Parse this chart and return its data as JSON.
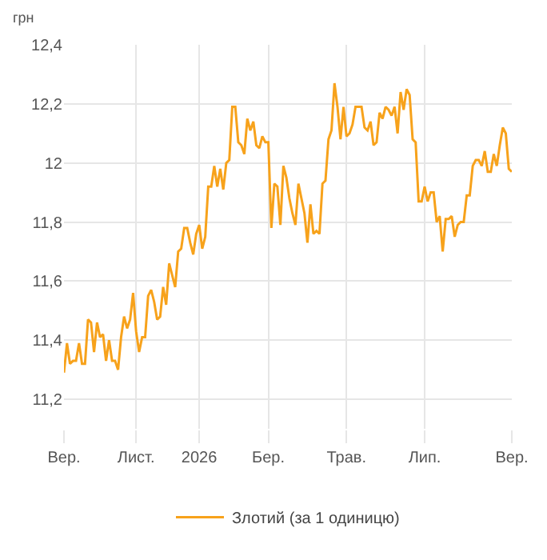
{
  "chart_data": {
    "type": "line",
    "ylabel": "грн",
    "categories": [
      "Вер.",
      null,
      null,
      null,
      null,
      null,
      null,
      null,
      null,
      null,
      null,
      null,
      null,
      null,
      null,
      null,
      null,
      null,
      null,
      null,
      null,
      null,
      null,
      null,
      "Лист.",
      null,
      null,
      null,
      null,
      null,
      null,
      null,
      null,
      null,
      null,
      null,
      null,
      null,
      null,
      null,
      null,
      null,
      null,
      null,
      null,
      "2026",
      null,
      null,
      null,
      null,
      null,
      null,
      null,
      null,
      null,
      null,
      null,
      null,
      null,
      null,
      null,
      null,
      null,
      null,
      null,
      null,
      null,
      null,
      "Бер.",
      null,
      null,
      null,
      null,
      null,
      null,
      null,
      null,
      null,
      null,
      null,
      null,
      null,
      null,
      null,
      null,
      null,
      null,
      null,
      null,
      null,
      null,
      null,
      null,
      null,
      "Трав.",
      null,
      null,
      null,
      null,
      null,
      null,
      null,
      null,
      null,
      null,
      null,
      null,
      null,
      null,
      null,
      null,
      null,
      null,
      null,
      null,
      null,
      null,
      null,
      null,
      null,
      "Лип.",
      null,
      null,
      null,
      null,
      null,
      null,
      null,
      null,
      null,
      null,
      null,
      null,
      null,
      null,
      null,
      null,
      null,
      null,
      null,
      null,
      null,
      null,
      null,
      null,
      null,
      null,
      null,
      null,
      "Вер."
    ],
    "series": [
      {
        "name": "Злотий (за 1 одиницю)",
        "color": "#f7a21b",
        "values": [
          11.29,
          11.39,
          11.32,
          11.33,
          11.33,
          11.39,
          11.32,
          11.32,
          11.47,
          11.46,
          11.36,
          11.46,
          11.41,
          11.42,
          11.33,
          11.4,
          11.33,
          11.33,
          11.3,
          11.41,
          11.48,
          11.44,
          11.47,
          11.56,
          11.43,
          11.36,
          11.41,
          11.41,
          11.55,
          11.57,
          11.53,
          11.47,
          11.48,
          11.58,
          11.52,
          11.66,
          11.62,
          11.58,
          11.7,
          11.71,
          11.78,
          11.78,
          11.73,
          11.69,
          11.76,
          11.79,
          11.71,
          11.75,
          11.92,
          11.92,
          11.99,
          11.92,
          11.98,
          11.91,
          12.0,
          12.01,
          12.19,
          12.19,
          12.07,
          12.06,
          12.03,
          12.15,
          12.11,
          12.14,
          12.06,
          12.05,
          12.09,
          12.07,
          12.07,
          11.78,
          11.93,
          11.92,
          11.79,
          11.99,
          11.95,
          11.88,
          11.83,
          11.79,
          11.93,
          11.88,
          11.83,
          11.73,
          11.86,
          11.76,
          11.77,
          11.76,
          11.93,
          11.94,
          12.08,
          12.11,
          12.27,
          12.19,
          12.08,
          12.19,
          12.09,
          12.1,
          12.13,
          12.19,
          12.19,
          12.19,
          12.12,
          12.11,
          12.14,
          12.06,
          12.07,
          12.17,
          12.15,
          12.19,
          12.18,
          12.16,
          12.19,
          12.1,
          12.24,
          12.18,
          12.25,
          12.23,
          12.08,
          12.07,
          11.87,
          11.87,
          11.92,
          11.87,
          11.9,
          11.9,
          11.8,
          11.82,
          11.7,
          11.81,
          11.81,
          11.82,
          11.75,
          11.79,
          11.8,
          11.8,
          11.89,
          11.89,
          11.99,
          12.01,
          12.01,
          11.99,
          12.04,
          11.97,
          11.97,
          12.03,
          11.99,
          12.06,
          12.12,
          12.1,
          11.98,
          11.97
        ]
      }
    ],
    "ylim": [
      11.1,
      12.4
    ],
    "yticks": [
      {
        "value": 11.2,
        "label": "11,2"
      },
      {
        "value": 11.4,
        "label": "11,4"
      },
      {
        "value": 11.6,
        "label": "11,6"
      },
      {
        "value": 11.8,
        "label": "11,8"
      },
      12,
      {
        "value": 12.2,
        "label": "12,2"
      },
      {
        "value": 12.4,
        "label": "12,4"
      }
    ],
    "grid": true,
    "legend": "bottom",
    "marker": "none",
    "line_style": "solid"
  }
}
